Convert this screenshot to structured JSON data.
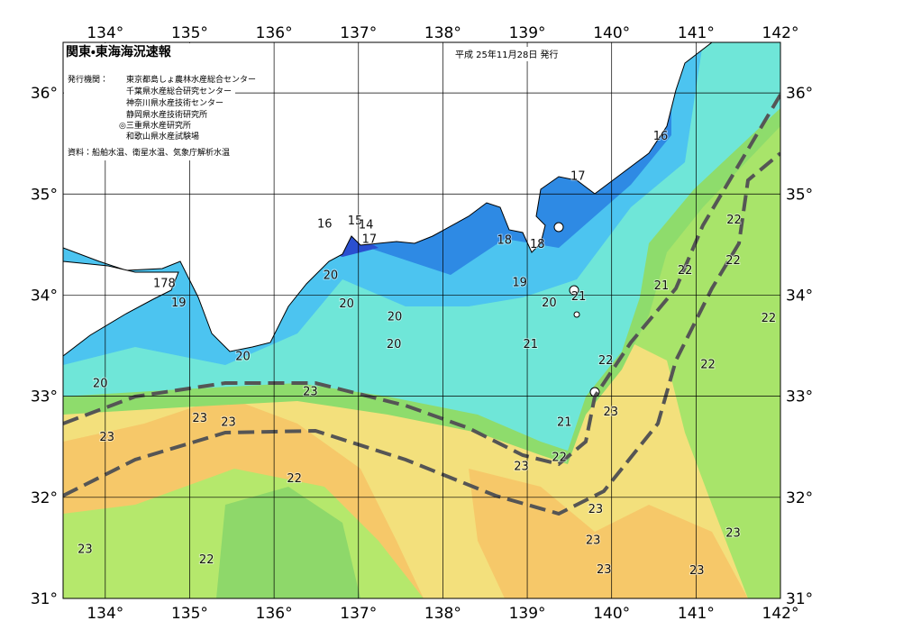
{
  "header": {
    "title": "関東・東海海況速報",
    "date": "平成 25年11月28日 発行",
    "issuers_label": "発行機関：",
    "issuers": [
      "東京都島しょ農林水産総合センター",
      "千葉県水産総合研究センター",
      "神奈川県水産技術センター",
      "静岡県水産技術研究所",
      "◎三重県水産研究所",
      "和歌山県水産試験場"
    ],
    "source": "資料：船舶水温、衛星水温、気象庁解析水温"
  },
  "map": {
    "lon_range": [
      133.5,
      142
    ],
    "lat_range": [
      31,
      36.5
    ],
    "lon_ticks": [
      {
        "value": 134,
        "label": "134°"
      },
      {
        "value": 135,
        "label": "135°"
      },
      {
        "value": 136,
        "label": "136°"
      },
      {
        "value": 137,
        "label": "137°"
      },
      {
        "value": 138,
        "label": "138°"
      },
      {
        "value": 139,
        "label": "139°"
      },
      {
        "value": 140,
        "label": "140°"
      },
      {
        "value": 141,
        "label": "141°"
      },
      {
        "value": 142,
        "label": "142°"
      }
    ],
    "lat_ticks": [
      {
        "value": 31,
        "label": "31°"
      },
      {
        "value": 32,
        "label": "32°"
      },
      {
        "value": 33,
        "label": "33°"
      },
      {
        "value": 34,
        "label": "34°"
      },
      {
        "value": 35,
        "label": "35°"
      },
      {
        "value": 36,
        "label": "36°"
      }
    ],
    "contour_labels": [
      {
        "text": "16",
        "lon": 136.6,
        "lat": 34.7
      },
      {
        "text": "15",
        "lon": 136.96,
        "lat": 34.73
      },
      {
        "text": "14",
        "lon": 137.09,
        "lat": 34.69
      },
      {
        "text": "17",
        "lon": 137.13,
        "lat": 34.55
      },
      {
        "text": "16",
        "lon": 140.58,
        "lat": 35.57
      },
      {
        "text": "17",
        "lon": 139.6,
        "lat": 35.17
      },
      {
        "text": "18",
        "lon": 138.73,
        "lat": 34.54
      },
      {
        "text": "18",
        "lon": 139.12,
        "lat": 34.5
      },
      {
        "text": "19",
        "lon": 138.91,
        "lat": 34.12
      },
      {
        "text": "20",
        "lon": 139.26,
        "lat": 33.92
      },
      {
        "text": "21",
        "lon": 139.61,
        "lat": 33.98
      },
      {
        "text": "178",
        "lon": 134.7,
        "lat": 34.11
      },
      {
        "text": "19",
        "lon": 134.87,
        "lat": 33.92
      },
      {
        "text": "20",
        "lon": 136.67,
        "lat": 34.19
      },
      {
        "text": "20",
        "lon": 136.86,
        "lat": 33.91
      },
      {
        "text": "20",
        "lon": 137.43,
        "lat": 33.78
      },
      {
        "text": "20",
        "lon": 137.42,
        "lat": 33.51
      },
      {
        "text": "20",
        "lon": 135.63,
        "lat": 33.39
      },
      {
        "text": "20",
        "lon": 133.94,
        "lat": 33.12
      },
      {
        "text": "21",
        "lon": 139.04,
        "lat": 33.51
      },
      {
        "text": "21",
        "lon": 140.59,
        "lat": 34.09
      },
      {
        "text": "22",
        "lon": 140.87,
        "lat": 34.24
      },
      {
        "text": "22",
        "lon": 141.45,
        "lat": 34.74
      },
      {
        "text": "22",
        "lon": 141.44,
        "lat": 34.34
      },
      {
        "text": "22",
        "lon": 141.86,
        "lat": 33.77
      },
      {
        "text": "22",
        "lon": 141.14,
        "lat": 33.31
      },
      {
        "text": "22",
        "lon": 139.93,
        "lat": 33.35
      },
      {
        "text": "23",
        "lon": 136.43,
        "lat": 33.04
      },
      {
        "text": "23",
        "lon": 135.12,
        "lat": 32.78
      },
      {
        "text": "23",
        "lon": 135.46,
        "lat": 32.74
      },
      {
        "text": "23",
        "lon": 134.02,
        "lat": 32.59
      },
      {
        "text": "23",
        "lon": 139.99,
        "lat": 32.84
      },
      {
        "text": "21",
        "lon": 139.44,
        "lat": 32.74
      },
      {
        "text": "22",
        "lon": 139.38,
        "lat": 32.39
      },
      {
        "text": "23",
        "lon": 138.93,
        "lat": 32.3
      },
      {
        "text": "22",
        "lon": 136.24,
        "lat": 32.18
      },
      {
        "text": "23",
        "lon": 139.81,
        "lat": 31.88
      },
      {
        "text": "23",
        "lon": 139.78,
        "lat": 31.57
      },
      {
        "text": "23",
        "lon": 139.91,
        "lat": 31.28
      },
      {
        "text": "23",
        "lon": 141.44,
        "lat": 31.64
      },
      {
        "text": "23",
        "lon": 141.01,
        "lat": 31.27
      },
      {
        "text": "22",
        "lon": 135.2,
        "lat": 31.38
      },
      {
        "text": "23",
        "lon": 133.76,
        "lat": 31.48
      }
    ]
  }
}
